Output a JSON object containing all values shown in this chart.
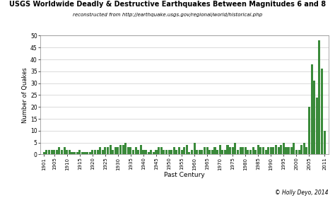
{
  "title": "USGS Worldwide Deadly & Destructive Earthquakes Between Magnitudes 6 and 8",
  "subtitle": "reconstructed from http://earthquake.usgs.gov/regional/world/historical.php",
  "xlabel": "Past Century",
  "ylabel": "Number of Quakes",
  "copyright": "© Holly Deyo, 2014",
  "bar_color": "#3a8a3a",
  "background_color": "#ffffff",
  "years": [
    1901,
    1902,
    1903,
    1904,
    1905,
    1906,
    1907,
    1908,
    1909,
    1910,
    1911,
    1912,
    1913,
    1914,
    1915,
    1916,
    1917,
    1918,
    1919,
    1920,
    1921,
    1922,
    1923,
    1924,
    1925,
    1926,
    1927,
    1928,
    1929,
    1930,
    1931,
    1932,
    1933,
    1934,
    1935,
    1936,
    1937,
    1938,
    1939,
    1940,
    1941,
    1942,
    1943,
    1944,
    1945,
    1946,
    1947,
    1948,
    1949,
    1950,
    1951,
    1952,
    1953,
    1954,
    1955,
    1956,
    1957,
    1958,
    1959,
    1960,
    1961,
    1962,
    1963,
    1964,
    1965,
    1966,
    1967,
    1968,
    1969,
    1970,
    1971,
    1972,
    1973,
    1974,
    1975,
    1976,
    1977,
    1978,
    1979,
    1980,
    1981,
    1982,
    1983,
    1984,
    1985,
    1986,
    1987,
    1988,
    1989,
    1990,
    1991,
    1992,
    1993,
    1994,
    1995,
    1996,
    1997,
    1998,
    1999,
    2000,
    2001,
    2002,
    2003,
    2004,
    2005,
    2006,
    2007,
    2008,
    2009,
    2010,
    2011
  ],
  "counts": [
    1,
    2,
    2,
    2,
    2,
    2,
    3,
    2,
    3,
    2,
    2,
    1,
    1,
    1,
    2,
    1,
    1,
    1,
    1,
    2,
    2,
    2,
    3,
    2,
    3,
    3,
    4,
    2,
    3,
    3,
    4,
    4,
    5,
    3,
    3,
    2,
    3,
    2,
    4,
    2,
    2,
    1,
    2,
    1,
    2,
    3,
    3,
    2,
    2,
    2,
    2,
    3,
    2,
    3,
    2,
    3,
    4,
    1,
    2,
    5,
    2,
    2,
    2,
    3,
    3,
    2,
    2,
    3,
    2,
    4,
    2,
    2,
    4,
    3,
    3,
    5,
    2,
    3,
    3,
    3,
    2,
    2,
    3,
    2,
    4,
    3,
    3,
    2,
    3,
    3,
    3,
    4,
    3,
    4,
    5,
    3,
    3,
    3,
    5,
    2,
    2,
    4,
    5,
    3,
    20,
    38,
    31,
    24,
    48,
    36,
    10
  ],
  "ylim": [
    0,
    50
  ],
  "yticks": [
    0,
    5,
    10,
    15,
    20,
    25,
    30,
    35,
    40,
    45,
    50
  ],
  "xtick_years": [
    1901,
    1905,
    1910,
    1915,
    1920,
    1925,
    1930,
    1935,
    1940,
    1945,
    1950,
    1955,
    1960,
    1965,
    1970,
    1975,
    1980,
    1985,
    1990,
    1995,
    2000,
    2005,
    2011
  ]
}
